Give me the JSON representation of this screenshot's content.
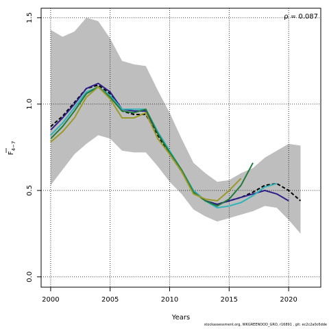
{
  "footer_text": "stockassessment.org, WKGREENOOD_GRO, r16891 , git: ec2c2a0c6dde",
  "chart_data": {
    "type": "line",
    "title": "",
    "xlabel": "Years",
    "ylabel_main": "F",
    "ylabel_sub": "4−7",
    "annotation": "ρ = 0.087",
    "xlim": [
      1999.2,
      2022.7
    ],
    "ylim": [
      -0.06,
      1.555
    ],
    "xticks": [
      2000,
      2005,
      2010,
      2015,
      2020
    ],
    "yticks": [
      0.0,
      0.5,
      1.0,
      1.5
    ],
    "xtick_labels": [
      "2000",
      "2005",
      "2010",
      "2015",
      "2020"
    ],
    "ytick_labels": [
      "0.0",
      "0.5",
      "1.0",
      "1.5"
    ],
    "grid": true,
    "band_color": "#bebebe",
    "band": {
      "x": [
        2000,
        2001,
        2002,
        2003,
        2004,
        2005,
        2006,
        2007,
        2008,
        2009,
        2010,
        2011,
        2012,
        2013,
        2014,
        2015,
        2016,
        2017,
        2018,
        2019,
        2020,
        2021
      ],
      "upper": [
        1.43,
        1.39,
        1.42,
        1.5,
        1.48,
        1.38,
        1.25,
        1.23,
        1.22,
        1.08,
        0.95,
        0.8,
        0.66,
        0.6,
        0.55,
        0.56,
        0.6,
        0.63,
        0.69,
        0.73,
        0.77,
        0.76
      ],
      "lower": [
        0.53,
        0.62,
        0.71,
        0.77,
        0.82,
        0.8,
        0.73,
        0.72,
        0.72,
        0.64,
        0.55,
        0.48,
        0.39,
        0.35,
        0.32,
        0.34,
        0.36,
        0.38,
        0.41,
        0.4,
        0.33,
        0.25
      ]
    },
    "series": [
      {
        "color": "#000000",
        "dashed": true,
        "x": [
          2000,
          2001,
          2002,
          2003,
          2004,
          2005,
          2006,
          2007,
          2008,
          2009,
          2010,
          2011,
          2012,
          2013,
          2014,
          2015,
          2016,
          2017,
          2018,
          2019,
          2020,
          2021
        ],
        "values": [
          0.87,
          0.93,
          1.01,
          1.09,
          1.11,
          1.06,
          0.96,
          0.94,
          0.94,
          0.82,
          0.71,
          0.61,
          0.49,
          0.44,
          0.42,
          0.44,
          0.46,
          0.49,
          0.53,
          0.54,
          0.5,
          0.44
        ]
      },
      {
        "color": "#2d1e8a",
        "x": [
          2000,
          2001,
          2002,
          2003,
          2004,
          2005,
          2006,
          2007,
          2008,
          2009,
          2010,
          2011,
          2012,
          2013,
          2014,
          2015,
          2016,
          2017,
          2018,
          2019,
          2020
        ],
        "values": [
          0.85,
          0.92,
          1.0,
          1.09,
          1.12,
          1.07,
          0.97,
          0.96,
          0.96,
          0.83,
          0.72,
          0.61,
          0.5,
          0.44,
          0.42,
          0.44,
          0.46,
          0.48,
          0.5,
          0.48,
          0.44
        ]
      },
      {
        "color": "#2fb3b8",
        "x": [
          2000,
          2001,
          2002,
          2003,
          2004,
          2005,
          2006,
          2007,
          2008,
          2009,
          2010,
          2011,
          2012,
          2013,
          2014,
          2015,
          2016,
          2017,
          2018,
          2019
        ],
        "values": [
          0.82,
          0.89,
          0.98,
          1.07,
          1.1,
          1.05,
          0.97,
          0.97,
          0.97,
          0.84,
          0.73,
          0.62,
          0.5,
          0.44,
          0.4,
          0.41,
          0.43,
          0.47,
          0.52,
          0.54
        ]
      },
      {
        "color": "#1f7a3a",
        "x": [
          2000,
          2001,
          2002,
          2003,
          2004,
          2005,
          2006,
          2007,
          2008,
          2009,
          2010,
          2011,
          2012,
          2013,
          2014,
          2015,
          2016,
          2017
        ],
        "values": [
          0.8,
          0.87,
          0.96,
          1.06,
          1.1,
          1.04,
          0.96,
          0.95,
          0.97,
          0.83,
          0.72,
          0.62,
          0.49,
          0.44,
          0.41,
          0.45,
          0.53,
          0.66
        ]
      },
      {
        "color": "#9a9a28",
        "x": [
          2000,
          2001,
          2002,
          2003,
          2004,
          2005,
          2006,
          2007,
          2008,
          2009,
          2010,
          2011,
          2012,
          2013,
          2014,
          2015,
          2016
        ],
        "values": [
          0.78,
          0.84,
          0.92,
          1.04,
          1.1,
          1.03,
          0.92,
          0.92,
          0.95,
          0.8,
          0.71,
          0.61,
          0.48,
          0.45,
          0.44,
          0.5,
          0.57
        ]
      }
    ]
  }
}
